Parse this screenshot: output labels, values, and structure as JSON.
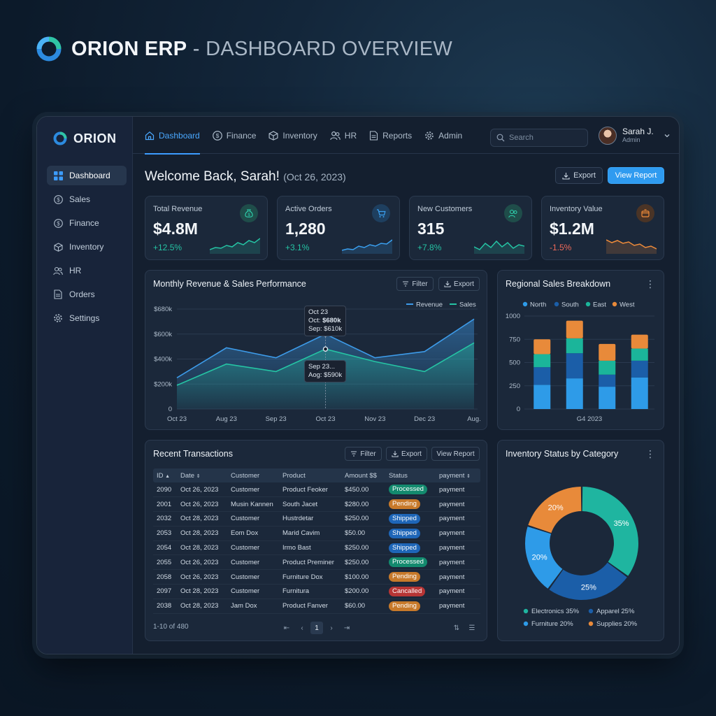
{
  "page": {
    "brand": "ORION ERP",
    "separator": " - ",
    "subtitle": "DASHBOARD OVERVIEW"
  },
  "sidebar": {
    "logo": "ORION",
    "items": [
      {
        "label": "Dashboard",
        "icon": "dashboard-grid-icon",
        "active": true
      },
      {
        "label": "Sales",
        "icon": "dollar-circle-icon"
      },
      {
        "label": "Finance",
        "icon": "dollar-circle-icon"
      },
      {
        "label": "Inventory",
        "icon": "box-icon"
      },
      {
        "label": "HR",
        "icon": "people-icon"
      },
      {
        "label": "Orders",
        "icon": "document-icon"
      },
      {
        "label": "Settings",
        "icon": "gear-icon"
      }
    ]
  },
  "topnav": {
    "tabs": [
      {
        "label": "Dashboard",
        "icon": "home-icon",
        "active": true
      },
      {
        "label": "Finance",
        "icon": "dollar-circle-icon"
      },
      {
        "label": "Inventory",
        "icon": "box-icon"
      },
      {
        "label": "HR",
        "icon": "people-icon"
      },
      {
        "label": "Reports",
        "icon": "document-icon"
      },
      {
        "label": "Admin",
        "icon": "gear-icon"
      }
    ],
    "search_placeholder": "Search",
    "user": {
      "name": "Sarah J.",
      "role": "Admin"
    }
  },
  "header": {
    "welcome": "Welcome Back, Sarah!",
    "date": "(Oct 26, 2023)",
    "export_label": "Export",
    "view_report_label": "View Report"
  },
  "kpis": [
    {
      "label": "Total Revenue",
      "value": "$4.8M",
      "change": "+12.5%",
      "trend": "up",
      "icon": "money-bag-icon",
      "color": "#25c4a4"
    },
    {
      "label": "Active Orders",
      "value": "1,280",
      "change": "+3.1%",
      "trend": "up",
      "icon": "cart-icon",
      "color": "#3aa0f0"
    },
    {
      "label": "New Customers",
      "value": "315",
      "change": "+7.8%",
      "trend": "up",
      "icon": "people-icon",
      "color": "#25c4a4"
    },
    {
      "label": "Inventory Value",
      "value": "$1.2M",
      "change": "-1.5%",
      "trend": "down",
      "icon": "box-icon",
      "color": "#f08c3a"
    }
  ],
  "revenue_chart": {
    "title": "Monthly Revenue & Sales Performance",
    "filter_label": "Filter",
    "export_label": "Export",
    "tooltip_top": {
      "title": "Oct 23",
      "line1_label": "Oct: ",
      "line1_value": "$680k",
      "line2": "Sep: $610k"
    },
    "tooltip_bottom": {
      "title": "Sep 23...",
      "line1": "Aog: $590k"
    }
  },
  "regional_chart": {
    "title": "Regional Sales Breakdown"
  },
  "transactions": {
    "title": "Recent Transactions",
    "filter_label": "Filter",
    "export_label": "Export",
    "view_report_label": "View Report",
    "columns": [
      "ID",
      "Date",
      "Customer",
      "Product",
      "Amount $$",
      "Status",
      "payment"
    ],
    "rows": [
      {
        "id": "2090",
        "date": "Oct 26, 2023",
        "customer": "Customer",
        "product": "Product Feoker",
        "amount": "$450.00",
        "status": "Processed",
        "payment": "payment"
      },
      {
        "id": "2001",
        "date": "Oct 26, 2023",
        "customer": "Musin Kannen",
        "product": "South Jacet",
        "amount": "$280.00",
        "status": "Pending",
        "payment": "payment"
      },
      {
        "id": "2032",
        "date": "Oct 28, 2023",
        "customer": "Customer",
        "product": "Hustrdetar",
        "amount": "$250.00",
        "status": "Shipped",
        "payment": "payment"
      },
      {
        "id": "2053",
        "date": "Oct 28, 2023",
        "customer": "Eom Dox",
        "product": "Marid Cavim",
        "amount": "$50.00",
        "status": "Shipped",
        "payment": "payment"
      },
      {
        "id": "2054",
        "date": "Oct 28, 2023",
        "customer": "Customer",
        "product": "Irmo Bast",
        "amount": "$250.00",
        "status": "Shipped",
        "payment": "payment"
      },
      {
        "id": "2055",
        "date": "Oct 26, 2023",
        "customer": "Customer",
        "product": "Product Preminer",
        "amount": "$250.00",
        "status": "Processed",
        "payment": "payment"
      },
      {
        "id": "2058",
        "date": "Oct 26, 2023",
        "customer": "Customer",
        "product": "Furniture Dox",
        "amount": "$100.00",
        "status": "Pending",
        "payment": "payment"
      },
      {
        "id": "2097",
        "date": "Oct 28, 2023",
        "customer": "Customer",
        "product": "Furnitura",
        "amount": "$200.00",
        "status": "Cancalled",
        "payment": "payment"
      },
      {
        "id": "2038",
        "date": "Oct 28, 2023",
        "customer": "Jam Dox",
        "product": "Product Fanver",
        "amount": "$60.00",
        "status": "Pending",
        "payment": "payment"
      }
    ],
    "pagination": {
      "summary": "1-10 of 480",
      "current_page": "1"
    }
  },
  "inventory_chart": {
    "title": "Inventory Status by Category"
  },
  "status_colors": {
    "Processed": "#138a6e",
    "Pending": "#c7792a",
    "Shipped": "#1e66b8",
    "Cancalled": "#b73535"
  },
  "chart_data": [
    {
      "type": "area",
      "x": [
        "Oct 23",
        "Aug 23",
        "Sep 23",
        "Oct 23",
        "Nov 23",
        "Dec 23",
        "Aug."
      ],
      "y_tick_labels": [
        "0",
        "$200k",
        "$400k",
        "$600k",
        "$680k"
      ],
      "ylim": [
        0,
        800000
      ],
      "series": [
        {
          "name": "Revenue",
          "color": "#3d9be9",
          "values": [
            250000,
            490000,
            410000,
            600000,
            410000,
            460000,
            720000
          ]
        },
        {
          "name": "Sales",
          "color": "#25c4a4",
          "values": [
            190000,
            360000,
            300000,
            480000,
            380000,
            300000,
            530000
          ]
        }
      ],
      "legend": "top-right",
      "grid": true
    },
    {
      "type": "bar",
      "stacked": true,
      "categories": [
        "",
        "",
        "",
        ""
      ],
      "xlabel": "G4 2023",
      "ylim": [
        0,
        1000
      ],
      "y_ticks": [
        0,
        250,
        500,
        750,
        1000
      ],
      "series": [
        {
          "name": "North",
          "color": "#2e9be8",
          "values": [
            260,
            330,
            240,
            340
          ]
        },
        {
          "name": "South",
          "color": "#1b5ea8",
          "values": [
            190,
            270,
            130,
            180
          ]
        },
        {
          "name": "East",
          "color": "#1bb59a",
          "values": [
            140,
            160,
            150,
            130
          ]
        },
        {
          "name": "West",
          "color": "#e88a3a",
          "values": [
            160,
            190,
            180,
            150
          ]
        }
      ],
      "legend": "top",
      "grid": true
    },
    {
      "type": "pie",
      "donut": true,
      "labels": [
        "Electronics",
        "Apparel",
        "Furniture",
        "Supplies"
      ],
      "values": [
        35,
        25,
        20,
        20
      ],
      "display": [
        "35%",
        "25%",
        "20%",
        "20%"
      ],
      "legend_entries": [
        "Electronics 35%",
        "Apparel 25%",
        "Furniture 20%",
        "Supplies 20%"
      ],
      "colors": [
        "#1fb5a0",
        "#1b5ea8",
        "#2e9be8",
        "#e88a3a"
      ],
      "legend": "bottom"
    }
  ]
}
